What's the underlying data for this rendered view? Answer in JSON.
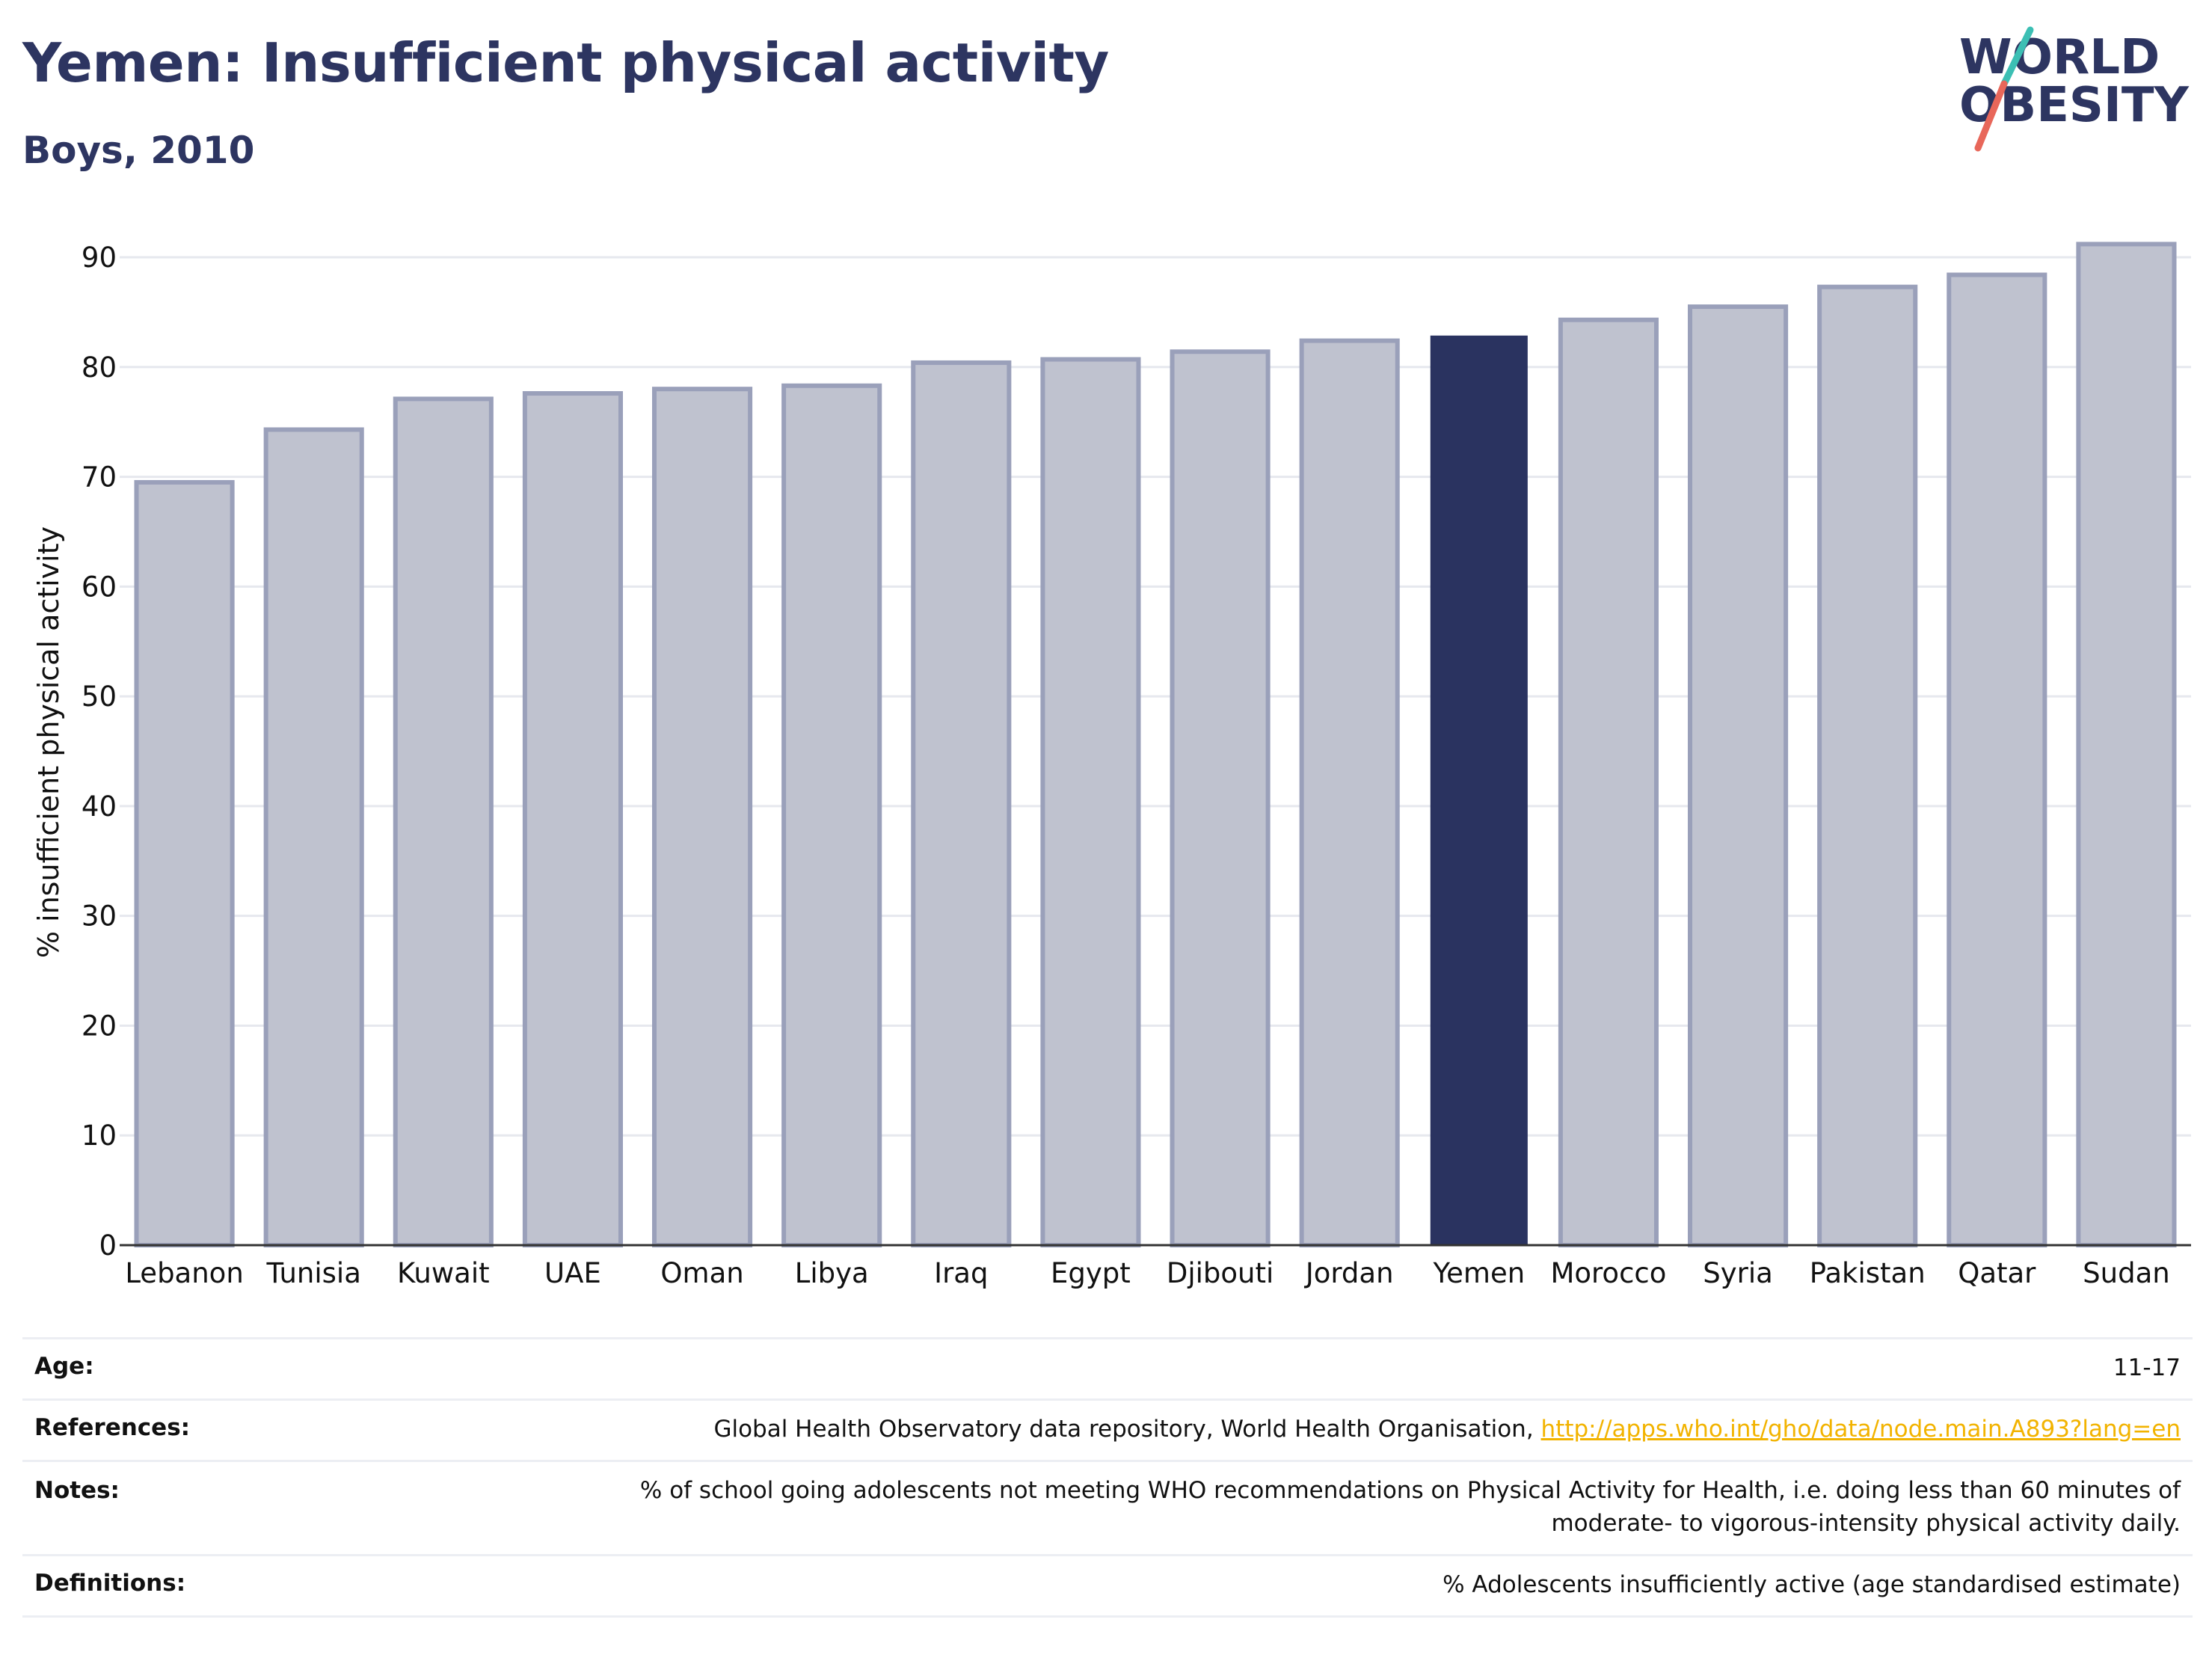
{
  "header": {
    "title": "Yemen: Insufficient physical activity",
    "subtitle": "Boys, 2010"
  },
  "logo": {
    "line1": "WORLD",
    "line2": "OBESITY",
    "colors": {
      "text": "#2d3561",
      "slash_top": "#3cbfb4",
      "slash_bottom": "#e8675a"
    }
  },
  "chart_data": {
    "type": "bar",
    "ylabel": "% insufficient physical activity",
    "xlabel": "",
    "ylim": [
      0,
      93
    ],
    "yticks": [
      0,
      10,
      20,
      30,
      40,
      50,
      60,
      70,
      80,
      90
    ],
    "grid": true,
    "categories": [
      "Lebanon",
      "Tunisia",
      "Kuwait",
      "UAE",
      "Oman",
      "Libya",
      "Iraq",
      "Egypt",
      "Djibouti",
      "Jordan",
      "Yemen",
      "Morocco",
      "Syria",
      "Pakistan",
      "Qatar",
      "Sudan"
    ],
    "values": [
      69.5,
      74.3,
      77.1,
      77.6,
      78.0,
      78.3,
      80.4,
      80.7,
      81.4,
      82.4,
      82.8,
      84.3,
      85.5,
      87.3,
      88.4,
      91.2
    ],
    "highlight": "Yemen",
    "colors": {
      "highlight": "#2a3360",
      "other_fill": "#bfc2cf",
      "other_stroke": "#9aa0ba"
    }
  },
  "meta": {
    "rows": [
      {
        "label": "Age:",
        "value": "11-17"
      },
      {
        "label": "References:",
        "value": "Global Health Observatory data repository, World Health Organisation, ",
        "link": "http://apps.who.int/gho/data/node.main.A893?lang=en"
      },
      {
        "label": "Notes:",
        "value": "% of school going adolescents not meeting WHO recommendations on Physical Activity for Health, i.e. doing less than 60 minutes of",
        "value2": "moderate- to vigorous-intensity physical activity daily."
      },
      {
        "label": "Definitions:",
        "value": "% Adolescents insufficiently active (age standardised estimate)"
      }
    ]
  }
}
